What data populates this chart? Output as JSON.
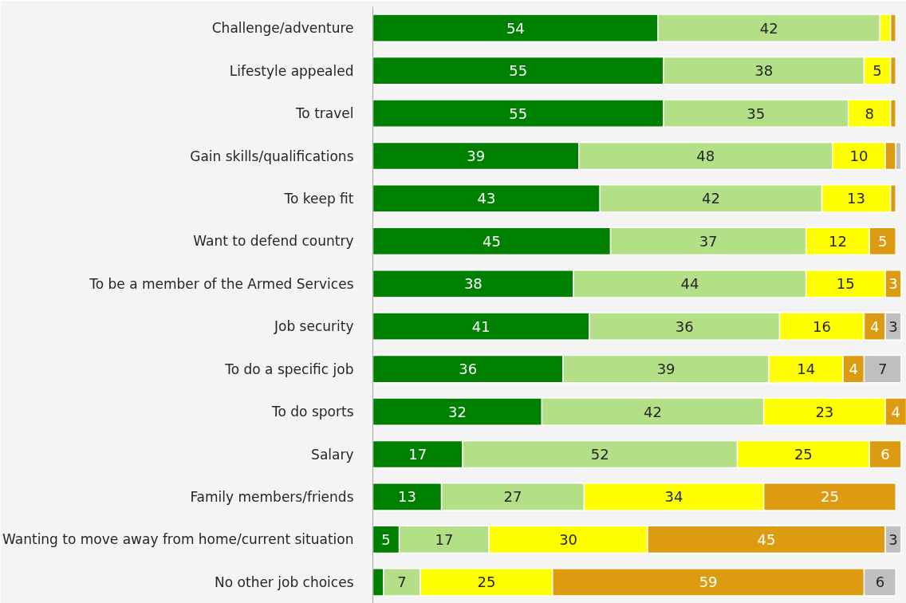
{
  "chart_data": {
    "type": "bar",
    "orientation": "horizontal",
    "stacked": true,
    "tick_labels": "y",
    "xlim": [
      0,
      101
    ],
    "grid": false,
    "categories": [
      "Challenge/adventure",
      "Lifestyle appealed",
      "To travel",
      "Gain skills/qualifications",
      "To keep fit",
      "Want to defend country",
      "To be a member of the Armed Services",
      "Job security",
      "To do a specific job",
      "To do sports",
      "Salary",
      "Family members/friends",
      "Wanting to move away from home/current situation",
      "No other job choices"
    ],
    "series": [
      {
        "color": "#008000",
        "values": [
          54,
          55,
          55,
          39,
          43,
          45,
          38,
          41,
          36,
          32,
          17,
          13,
          5,
          2
        ],
        "value_labels": [
          "54",
          "55",
          "55",
          "39",
          "43",
          "45",
          "38",
          "41",
          "36",
          "32",
          "17",
          "13",
          "5",
          null
        ]
      },
      {
        "color": "#b3df86",
        "values": [
          42,
          38,
          35,
          48,
          42,
          37,
          44,
          36,
          39,
          42,
          52,
          27,
          17,
          7
        ],
        "value_labels": [
          "42",
          "38",
          "35",
          "48",
          "42",
          "37",
          "44",
          "36",
          "39",
          "42",
          "52",
          "27",
          "17",
          "7"
        ]
      },
      {
        "color": "#ffff00",
        "values": [
          2,
          5,
          8,
          10,
          13,
          12,
          15,
          16,
          14,
          23,
          25,
          34,
          30,
          25
        ],
        "value_labels": [
          null,
          "5",
          "8",
          "10",
          "13",
          "12",
          "15",
          "16",
          "14",
          "23",
          "25",
          "34",
          "30",
          "25"
        ]
      },
      {
        "color": "#dc9b10",
        "values": [
          1,
          1,
          1,
          2,
          1,
          5,
          3,
          4,
          4,
          4,
          6,
          25,
          45,
          59
        ],
        "value_labels": [
          null,
          null,
          null,
          null,
          null,
          "5",
          "3",
          "4",
          "4",
          "4",
          "6",
          "25",
          "45",
          "59"
        ]
      },
      {
        "color": "#bfbfbf",
        "values": [
          null,
          null,
          null,
          1,
          null,
          null,
          null,
          3,
          7,
          null,
          null,
          null,
          3,
          6
        ],
        "value_labels": [
          null,
          null,
          null,
          null,
          null,
          null,
          null,
          "3",
          "7",
          null,
          null,
          null,
          "3",
          "6"
        ]
      }
    ]
  }
}
